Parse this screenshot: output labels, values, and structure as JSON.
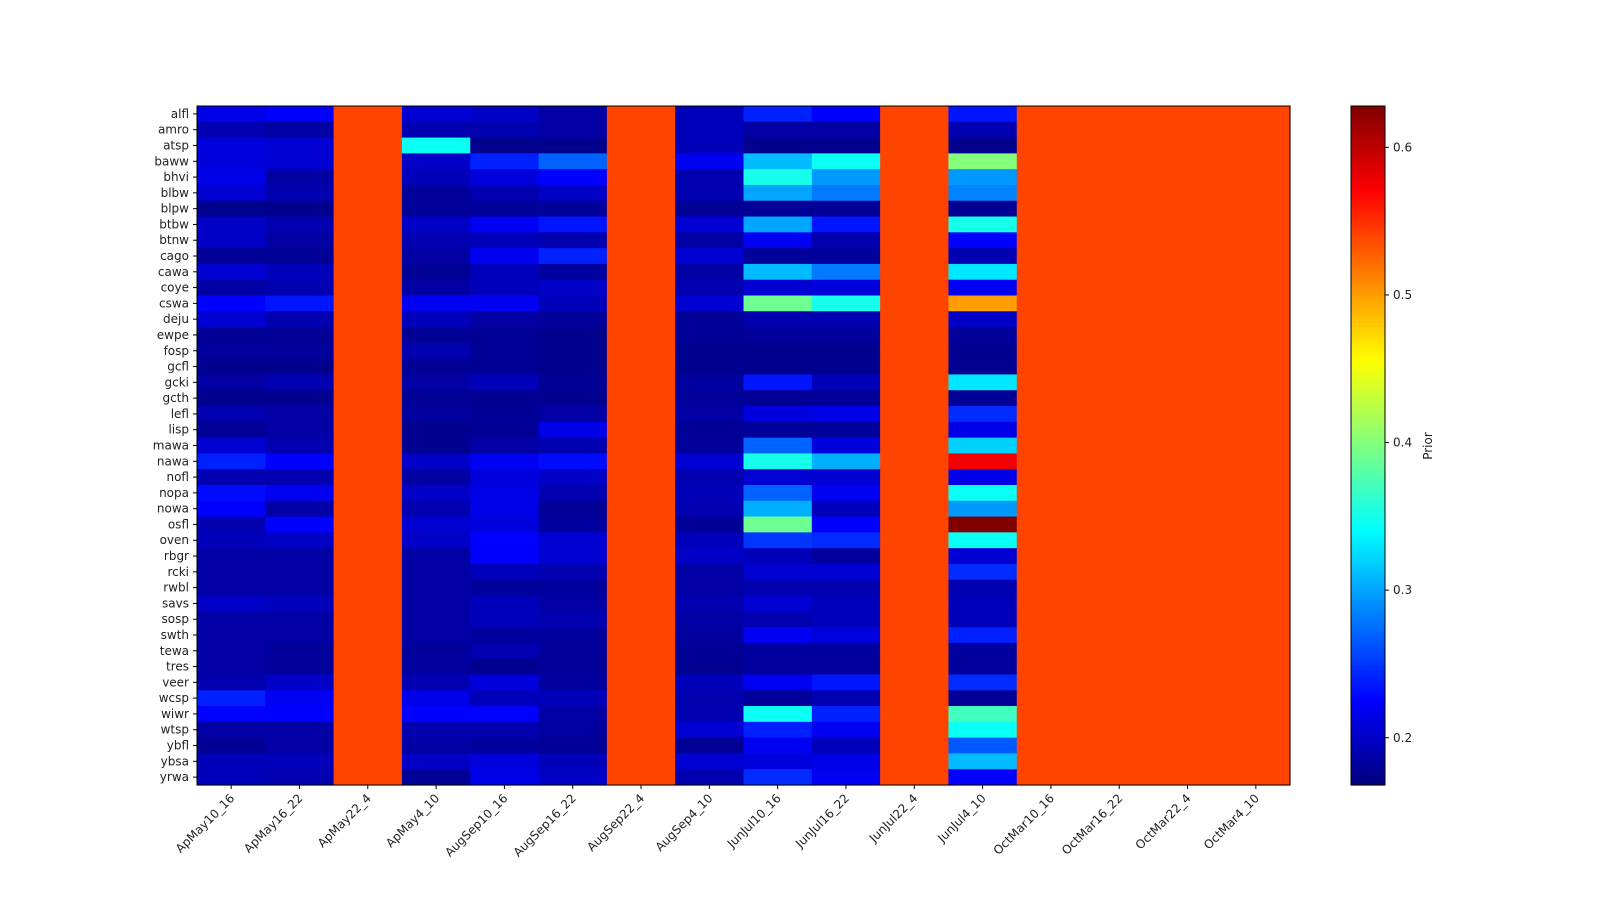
{
  "chart_data": {
    "type": "heatmap",
    "colormap": "jet",
    "colorbar_label": "Prior",
    "vmin": 0.168,
    "vmax": 0.628,
    "colorbar_ticks": [
      "0.2",
      "0.3",
      "0.4",
      "0.5",
      "0.6"
    ],
    "columns": [
      "ApMay10_16",
      "ApMay16_22",
      "ApMay22_4",
      "ApMay4_10",
      "AugSep10_16",
      "AugSep16_22",
      "AugSep22_4",
      "AugSep4_10",
      "JunJul10_16",
      "JunJul16_22",
      "JunJul22_4",
      "JunJul4_10",
      "OctMar10_16",
      "OctMar16_22",
      "OctMar22_4",
      "OctMar4_10"
    ],
    "rows": [
      {
        "label": "alfl",
        "values": [
          0.215,
          0.225,
          0.54,
          0.205,
          0.2,
          0.185,
          0.54,
          0.195,
          0.24,
          0.225,
          0.54,
          0.235,
          0.54,
          0.54,
          0.54,
          0.54
        ]
      },
      {
        "label": "amro",
        "values": [
          0.19,
          0.185,
          0.54,
          0.19,
          0.19,
          0.185,
          0.54,
          0.195,
          0.185,
          0.185,
          0.54,
          0.19,
          0.54,
          0.54,
          0.54,
          0.54
        ]
      },
      {
        "label": "atsp",
        "values": [
          0.21,
          0.205,
          0.54,
          0.345,
          0.175,
          0.175,
          0.54,
          0.195,
          0.175,
          0.175,
          0.54,
          0.175,
          0.54,
          0.54,
          0.54,
          0.54
        ]
      },
      {
        "label": "baww",
        "values": [
          0.21,
          0.205,
          0.54,
          0.2,
          0.24,
          0.27,
          0.54,
          0.22,
          0.31,
          0.345,
          0.54,
          0.4,
          0.54,
          0.54,
          0.54,
          0.54
        ]
      },
      {
        "label": "bhvi",
        "values": [
          0.215,
          0.185,
          0.54,
          0.195,
          0.21,
          0.225,
          0.54,
          0.19,
          0.35,
          0.295,
          0.54,
          0.295,
          0.54,
          0.54,
          0.54,
          0.54
        ]
      },
      {
        "label": "blbw",
        "values": [
          0.205,
          0.19,
          0.54,
          0.18,
          0.19,
          0.2,
          0.54,
          0.19,
          0.3,
          0.28,
          0.54,
          0.285,
          0.54,
          0.54,
          0.54,
          0.54
        ]
      },
      {
        "label": "blpw",
        "values": [
          0.175,
          0.175,
          0.54,
          0.18,
          0.18,
          0.18,
          0.54,
          0.178,
          0.178,
          0.178,
          0.54,
          0.178,
          0.54,
          0.54,
          0.54,
          0.54
        ]
      },
      {
        "label": "btbw",
        "values": [
          0.2,
          0.19,
          0.54,
          0.2,
          0.22,
          0.235,
          0.54,
          0.205,
          0.3,
          0.235,
          0.54,
          0.35,
          0.54,
          0.54,
          0.54,
          0.54
        ]
      },
      {
        "label": "btnw",
        "values": [
          0.2,
          0.185,
          0.54,
          0.19,
          0.195,
          0.19,
          0.54,
          0.185,
          0.22,
          0.19,
          0.54,
          0.225,
          0.54,
          0.54,
          0.54,
          0.54
        ]
      },
      {
        "label": "cago",
        "values": [
          0.178,
          0.178,
          0.54,
          0.185,
          0.22,
          0.24,
          0.54,
          0.205,
          0.18,
          0.18,
          0.54,
          0.19,
          0.54,
          0.54,
          0.54,
          0.54
        ]
      },
      {
        "label": "cawa",
        "values": [
          0.205,
          0.195,
          0.54,
          0.178,
          0.195,
          0.182,
          0.54,
          0.185,
          0.31,
          0.28,
          0.54,
          0.33,
          0.54,
          0.54,
          0.54,
          0.54
        ]
      },
      {
        "label": "coye",
        "values": [
          0.185,
          0.19,
          0.54,
          0.185,
          0.195,
          0.2,
          0.54,
          0.19,
          0.205,
          0.21,
          0.54,
          0.22,
          0.54,
          0.54,
          0.54,
          0.54
        ]
      },
      {
        "label": "cswa",
        "values": [
          0.225,
          0.235,
          0.54,
          0.22,
          0.22,
          0.195,
          0.54,
          0.205,
          0.39,
          0.35,
          0.54,
          0.5,
          0.54,
          0.54,
          0.54,
          0.54
        ]
      },
      {
        "label": "deju",
        "values": [
          0.205,
          0.19,
          0.54,
          0.195,
          0.185,
          0.18,
          0.54,
          0.178,
          0.19,
          0.19,
          0.54,
          0.2,
          0.54,
          0.54,
          0.54,
          0.54
        ]
      },
      {
        "label": "ewpe",
        "values": [
          0.178,
          0.178,
          0.54,
          0.178,
          0.178,
          0.175,
          0.54,
          0.178,
          0.18,
          0.18,
          0.54,
          0.18,
          0.54,
          0.54,
          0.54,
          0.54
        ]
      },
      {
        "label": "fosp",
        "values": [
          0.182,
          0.18,
          0.54,
          0.19,
          0.178,
          0.175,
          0.54,
          0.175,
          0.175,
          0.175,
          0.54,
          0.176,
          0.54,
          0.54,
          0.54,
          0.54
        ]
      },
      {
        "label": "gcfl",
        "values": [
          0.175,
          0.175,
          0.54,
          0.178,
          0.178,
          0.175,
          0.54,
          0.175,
          0.175,
          0.175,
          0.54,
          0.176,
          0.54,
          0.54,
          0.54,
          0.54
        ]
      },
      {
        "label": "gcki",
        "values": [
          0.185,
          0.19,
          0.54,
          0.185,
          0.195,
          0.178,
          0.54,
          0.182,
          0.235,
          0.195,
          0.54,
          0.33,
          0.54,
          0.54,
          0.54,
          0.54
        ]
      },
      {
        "label": "gcth",
        "values": [
          0.175,
          0.176,
          0.54,
          0.178,
          0.177,
          0.176,
          0.54,
          0.18,
          0.178,
          0.178,
          0.54,
          0.178,
          0.54,
          0.54,
          0.54,
          0.54
        ]
      },
      {
        "label": "lefl",
        "values": [
          0.19,
          0.185,
          0.54,
          0.182,
          0.178,
          0.185,
          0.54,
          0.185,
          0.21,
          0.215,
          0.54,
          0.245,
          0.54,
          0.54,
          0.54,
          0.54
        ]
      },
      {
        "label": "lisp",
        "values": [
          0.178,
          0.185,
          0.54,
          0.176,
          0.178,
          0.215,
          0.54,
          0.178,
          0.18,
          0.18,
          0.54,
          0.215,
          0.54,
          0.54,
          0.54,
          0.54
        ]
      },
      {
        "label": "mawa",
        "values": [
          0.205,
          0.19,
          0.54,
          0.176,
          0.185,
          0.19,
          0.54,
          0.18,
          0.27,
          0.21,
          0.54,
          0.32,
          0.54,
          0.54,
          0.54,
          0.54
        ]
      },
      {
        "label": "nawa",
        "values": [
          0.24,
          0.225,
          0.54,
          0.2,
          0.22,
          0.23,
          0.54,
          0.205,
          0.35,
          0.305,
          0.54,
          0.575,
          0.54,
          0.54,
          0.54,
          0.54
        ]
      },
      {
        "label": "nofl",
        "values": [
          0.19,
          0.19,
          0.54,
          0.185,
          0.21,
          0.2,
          0.54,
          0.19,
          0.205,
          0.205,
          0.54,
          0.215,
          0.54,
          0.54,
          0.54,
          0.54
        ]
      },
      {
        "label": "nopa",
        "values": [
          0.23,
          0.22,
          0.54,
          0.2,
          0.215,
          0.19,
          0.54,
          0.195,
          0.27,
          0.22,
          0.54,
          0.345,
          0.54,
          0.54,
          0.54,
          0.54
        ]
      },
      {
        "label": "nowa",
        "values": [
          0.225,
          0.185,
          0.54,
          0.19,
          0.215,
          0.178,
          0.54,
          0.19,
          0.305,
          0.195,
          0.54,
          0.295,
          0.54,
          0.54,
          0.54,
          0.54
        ]
      },
      {
        "label": "osfl",
        "values": [
          0.19,
          0.225,
          0.54,
          0.205,
          0.21,
          0.182,
          0.54,
          0.178,
          0.39,
          0.225,
          0.54,
          0.628,
          0.54,
          0.54,
          0.54,
          0.54
        ]
      },
      {
        "label": "oven",
        "values": [
          0.195,
          0.2,
          0.54,
          0.2,
          0.225,
          0.205,
          0.54,
          0.195,
          0.25,
          0.245,
          0.54,
          0.345,
          0.54,
          0.54,
          0.54,
          0.54
        ]
      },
      {
        "label": "rbgr",
        "values": [
          0.185,
          0.185,
          0.54,
          0.185,
          0.225,
          0.205,
          0.54,
          0.2,
          0.195,
          0.182,
          0.54,
          0.205,
          0.54,
          0.54,
          0.54,
          0.54
        ]
      },
      {
        "label": "rcki",
        "values": [
          0.185,
          0.185,
          0.54,
          0.185,
          0.195,
          0.19,
          0.54,
          0.185,
          0.205,
          0.205,
          0.54,
          0.245,
          0.54,
          0.54,
          0.54,
          0.54
        ]
      },
      {
        "label": "rwbl",
        "values": [
          0.185,
          0.185,
          0.54,
          0.185,
          0.18,
          0.182,
          0.54,
          0.185,
          0.19,
          0.19,
          0.54,
          0.19,
          0.54,
          0.54,
          0.54,
          0.54
        ]
      },
      {
        "label": "savs",
        "values": [
          0.2,
          0.195,
          0.54,
          0.185,
          0.195,
          0.185,
          0.54,
          0.19,
          0.205,
          0.195,
          0.54,
          0.195,
          0.54,
          0.54,
          0.54,
          0.54
        ]
      },
      {
        "label": "sosp",
        "values": [
          0.185,
          0.185,
          0.54,
          0.185,
          0.195,
          0.19,
          0.54,
          0.185,
          0.19,
          0.195,
          0.54,
          0.195,
          0.54,
          0.54,
          0.54,
          0.54
        ]
      },
      {
        "label": "swth",
        "values": [
          0.185,
          0.185,
          0.54,
          0.185,
          0.182,
          0.182,
          0.54,
          0.182,
          0.22,
          0.21,
          0.54,
          0.24,
          0.54,
          0.54,
          0.54,
          0.54
        ]
      },
      {
        "label": "tewa",
        "values": [
          0.185,
          0.18,
          0.54,
          0.18,
          0.19,
          0.18,
          0.54,
          0.178,
          0.182,
          0.182,
          0.54,
          0.182,
          0.54,
          0.54,
          0.54,
          0.54
        ]
      },
      {
        "label": "tres",
        "values": [
          0.185,
          0.18,
          0.54,
          0.182,
          0.176,
          0.18,
          0.54,
          0.176,
          0.182,
          0.182,
          0.54,
          0.182,
          0.54,
          0.54,
          0.54,
          0.54
        ]
      },
      {
        "label": "veer",
        "values": [
          0.19,
          0.2,
          0.54,
          0.19,
          0.21,
          0.182,
          0.54,
          0.195,
          0.22,
          0.235,
          0.54,
          0.245,
          0.54,
          0.54,
          0.54,
          0.54
        ]
      },
      {
        "label": "wcsp",
        "values": [
          0.24,
          0.22,
          0.54,
          0.215,
          0.195,
          0.195,
          0.54,
          0.19,
          0.18,
          0.19,
          0.54,
          0.178,
          0.54,
          0.54,
          0.54,
          0.54
        ]
      },
      {
        "label": "wiwr",
        "values": [
          0.225,
          0.225,
          0.54,
          0.225,
          0.225,
          0.185,
          0.54,
          0.19,
          0.345,
          0.24,
          0.54,
          0.37,
          0.54,
          0.54,
          0.54,
          0.54
        ]
      },
      {
        "label": "wtsp",
        "values": [
          0.185,
          0.185,
          0.54,
          0.19,
          0.19,
          0.182,
          0.54,
          0.205,
          0.24,
          0.22,
          0.54,
          0.345,
          0.54,
          0.54,
          0.54,
          0.54
        ]
      },
      {
        "label": "ybfl",
        "values": [
          0.178,
          0.185,
          0.54,
          0.185,
          0.182,
          0.178,
          0.54,
          0.178,
          0.22,
          0.195,
          0.54,
          0.265,
          0.54,
          0.54,
          0.54,
          0.54
        ]
      },
      {
        "label": "ybsa",
        "values": [
          0.195,
          0.195,
          0.54,
          0.2,
          0.21,
          0.195,
          0.54,
          0.205,
          0.21,
          0.215,
          0.54,
          0.31,
          0.54,
          0.54,
          0.54,
          0.54
        ]
      },
      {
        "label": "yrwa",
        "values": [
          0.195,
          0.19,
          0.54,
          0.178,
          0.215,
          0.2,
          0.54,
          0.19,
          0.245,
          0.22,
          0.54,
          0.225,
          0.54,
          0.54,
          0.54,
          0.54
        ]
      }
    ]
  }
}
